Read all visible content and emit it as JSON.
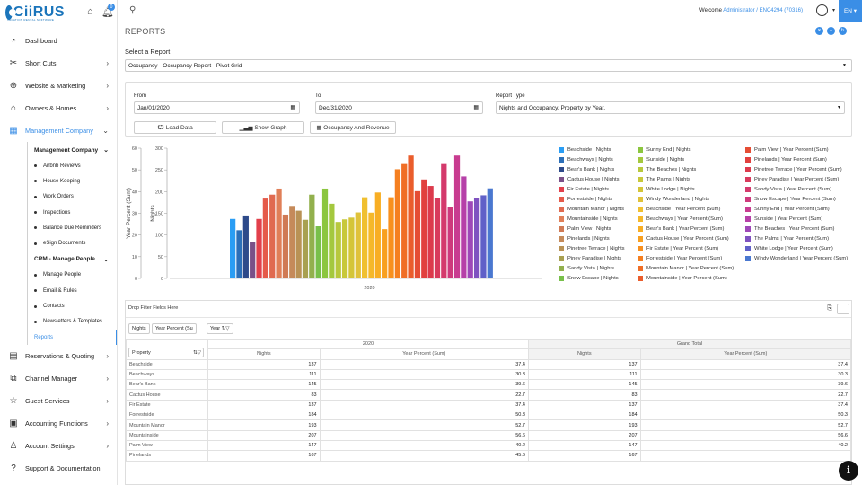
{
  "brand": {
    "name": "CiiRUS",
    "tagline": "VACATION RENTAL SOFTWARE"
  },
  "header": {
    "notifications": "0",
    "welcome_prefix": "Welcome ",
    "welcome_user": "Administrator / ENC4294 (70316)",
    "language": "EN"
  },
  "sidebar": {
    "items": [
      {
        "label": "Dashboard",
        "icon": "dashboard-icon"
      },
      {
        "label": "Short Cuts",
        "icon": "scissors-icon"
      },
      {
        "label": "Website & Marketing",
        "icon": "globe-icon"
      },
      {
        "label": "Owners & Homes",
        "icon": "home-icon"
      },
      {
        "label": "Management Company",
        "icon": "building-icon"
      }
    ],
    "management_company": {
      "label": "Management Company",
      "items": [
        "Airbnb Reviews",
        "House Keeping",
        "Work Orders",
        "Inspections",
        "Balance Due Reminders",
        "eSign Documents"
      ]
    },
    "crm": {
      "label": "CRM - Manage People",
      "items": [
        "Manage People",
        "Email & Rules",
        "Contacts",
        "Newsletters & Templates"
      ]
    },
    "reports_label": "Reports",
    "bottom_items": [
      {
        "label": "Reservations & Quoting",
        "icon": "calendar-icon"
      },
      {
        "label": "Channel Manager",
        "icon": "network-icon"
      },
      {
        "label": "Guest Services",
        "icon": "star-icon"
      },
      {
        "label": "Accounting Functions",
        "icon": "calculator-icon"
      },
      {
        "label": "Account Settings",
        "icon": "user-icon"
      },
      {
        "label": "Support & Documentation",
        "icon": "help-icon"
      }
    ]
  },
  "page": {
    "title": "REPORTS",
    "select_report_label": "Select a Report",
    "selected_report": "Occupancy - Occupancy Report - Pivot Grid",
    "from_label": "From",
    "from_value": "Jan/01/2020",
    "to_label": "To",
    "to_value": "Dec/31/2020",
    "report_type_label": "Report Type",
    "report_type_value": "Nights and Occupancy. Property by Year.",
    "buttons": {
      "load": "Load Data",
      "graph": "Show Graph",
      "occupancy": "Occupancy And Revenue"
    }
  },
  "chart_data": {
    "type": "bar",
    "categories": [
      "2020"
    ],
    "xlabel": "",
    "ylabel_left": "Year Percent (Sum)",
    "ylabel_right": "Nights",
    "yticks_left": [
      0,
      10,
      20,
      30,
      40,
      50,
      60
    ],
    "yticks_right": [
      0,
      50,
      100,
      150,
      200,
      250,
      300
    ],
    "ylim_left": [
      0,
      60
    ],
    "ylim_right": [
      0,
      300
    ],
    "series": [
      {
        "name": "Beachside | Nights",
        "values": [
          137
        ],
        "color": "#2a9df4"
      },
      {
        "name": "Beachways | Nights",
        "values": [
          111
        ],
        "color": "#2c6fb8"
      },
      {
        "name": "Bear's Bank | Nights",
        "values": [
          145
        ],
        "color": "#2e4a8a"
      },
      {
        "name": "Cactus House | Nights",
        "values": [
          83
        ],
        "color": "#7a5088"
      },
      {
        "name": "Fir Estate | Nights",
        "values": [
          137
        ],
        "color": "#e2404b"
      },
      {
        "name": "Forrestside | Nights",
        "values": [
          184
        ],
        "color": "#e55a4a"
      },
      {
        "name": "Mountain Manor | Nights",
        "values": [
          193
        ],
        "color": "#e06a50"
      },
      {
        "name": "Mountainside | Nights",
        "values": [
          207
        ],
        "color": "#e07f58"
      },
      {
        "name": "Palm View | Nights",
        "values": [
          147
        ],
        "color": "#d07a55"
      },
      {
        "name": "Pinelands | Nights",
        "values": [
          167
        ],
        "color": "#c58a5a"
      },
      {
        "name": "Pinetree Terrace | Nights",
        "values": [
          156
        ],
        "color": "#b99255"
      },
      {
        "name": "Piney Paradise | Nights",
        "values": [
          135
        ],
        "color": "#a8a050"
      },
      {
        "name": "Sandy Vista | Nights",
        "values": [
          193
        ],
        "color": "#92b04d"
      },
      {
        "name": "Snow Escape | Nights",
        "values": [
          120
        ],
        "color": "#78c04a"
      },
      {
        "name": "Sunny End | Nights",
        "values": [
          207
        ],
        "color": "#8cc63f"
      },
      {
        "name": "Sunside | Nights",
        "values": [
          172
        ],
        "color": "#a4c83e"
      },
      {
        "name": "The Beaches | Nights",
        "values": [
          130
        ],
        "color": "#b8c83c"
      },
      {
        "name": "The Palms | Nights",
        "values": [
          136
        ],
        "color": "#c8c83a"
      },
      {
        "name": "White Lodge | Nights",
        "values": [
          140
        ],
        "color": "#d4c538"
      },
      {
        "name": "Windy Wonderland | Nights",
        "values": [
          152
        ],
        "color": "#e0c23a"
      },
      {
        "name": "Beachside | Year Percent (Sum)",
        "values": [
          37.4
        ],
        "color": "#f0c030"
      },
      {
        "name": "Beachways | Year Percent (Sum)",
        "values": [
          30.3
        ],
        "color": "#f5b82a"
      },
      {
        "name": "Bear's Bank | Year Percent (Sum)",
        "values": [
          39.6
        ],
        "color": "#f8ae24"
      },
      {
        "name": "Cactus House | Year Percent (Sum)",
        "values": [
          22.7
        ],
        "color": "#f8a020"
      },
      {
        "name": "Fir Estate | Year Percent (Sum)",
        "values": [
          37.4
        ],
        "color": "#f8901e"
      },
      {
        "name": "Forrestside | Year Percent (Sum)",
        "values": [
          50.3
        ],
        "color": "#f57f20"
      },
      {
        "name": "Mountain Manor | Year Percent (Sum)",
        "values": [
          52.7
        ],
        "color": "#f06e26"
      },
      {
        "name": "Mountainside | Year Percent (Sum)",
        "values": [
          56.6
        ],
        "color": "#ea5d2c"
      },
      {
        "name": "Palm View | Year Percent (Sum)",
        "values": [
          40.2
        ],
        "color": "#e54d34"
      },
      {
        "name": "Pinelands | Year Percent (Sum)",
        "values": [
          45.6
        ],
        "color": "#e1403e"
      },
      {
        "name": "Pinetree Terrace | Year Percent (Sum)",
        "values": [
          42.6
        ],
        "color": "#dc3a4c"
      },
      {
        "name": "Piney Paradise | Year Percent (Sum)",
        "values": [
          36.9
        ],
        "color": "#d83a5c"
      },
      {
        "name": "Sandy Vista | Year Percent (Sum)",
        "values": [
          52.7
        ],
        "color": "#d43a6c"
      },
      {
        "name": "Snow Escape | Year Percent (Sum)",
        "values": [
          32.8
        ],
        "color": "#ce3a7c"
      },
      {
        "name": "Sunny End | Year Percent (Sum)",
        "values": [
          56.6
        ],
        "color": "#c83c90"
      },
      {
        "name": "Sunside | Year Percent (Sum)",
        "values": [
          47.0
        ],
        "color": "#b640a8"
      },
      {
        "name": "The Beaches | Year Percent (Sum)",
        "values": [
          35.5
        ],
        "color": "#9e48b8"
      },
      {
        "name": "The Palms | Year Percent (Sum)",
        "values": [
          37.2
        ],
        "color": "#7f52c0"
      },
      {
        "name": "White Lodge | Year Percent (Sum)",
        "values": [
          38.3
        ],
        "color": "#6060c8"
      },
      {
        "name": "Windy Wonderland | Year Percent (Sum)",
        "values": [
          41.5
        ],
        "color": "#4a78d0"
      }
    ]
  },
  "pivot": {
    "drop_filter": "Drop Filter Fields Here",
    "chips": [
      "Nights",
      "Year Percent (Su",
      "Year"
    ],
    "col_header": "2020",
    "grand_header": "Grand Total",
    "row_field": "Property",
    "subheaders": [
      "Nights",
      "Year Percent (Sum)",
      "Nights",
      "Year Percent (Sum)"
    ],
    "rows": [
      {
        "name": "Beachside",
        "nights": "137",
        "pct": "37.4",
        "gt_nights": "137",
        "gt_pct": "37.4"
      },
      {
        "name": "Beachways",
        "nights": "111",
        "pct": "30.3",
        "gt_nights": "111",
        "gt_pct": "30.3"
      },
      {
        "name": "Bear's Bank",
        "nights": "145",
        "pct": "39.6",
        "gt_nights": "145",
        "gt_pct": "39.6"
      },
      {
        "name": "Cactus House",
        "nights": "83",
        "pct": "22.7",
        "gt_nights": "83",
        "gt_pct": "22.7"
      },
      {
        "name": "Fir Estate",
        "nights": "137",
        "pct": "37.4",
        "gt_nights": "137",
        "gt_pct": "37.4"
      },
      {
        "name": "Forrestside",
        "nights": "184",
        "pct": "50.3",
        "gt_nights": "184",
        "gt_pct": "50.3"
      },
      {
        "name": "Mountain Manor",
        "nights": "193",
        "pct": "52.7",
        "gt_nights": "193",
        "gt_pct": "52.7"
      },
      {
        "name": "Mountainside",
        "nights": "207",
        "pct": "56.6",
        "gt_nights": "207",
        "gt_pct": "56.6"
      },
      {
        "name": "Palm View",
        "nights": "147",
        "pct": "40.2",
        "gt_nights": "147",
        "gt_pct": "40.2"
      },
      {
        "name": "Pinelands",
        "nights": "167",
        "pct": "45.6",
        "gt_nights": "167",
        "gt_pct": ""
      }
    ]
  }
}
